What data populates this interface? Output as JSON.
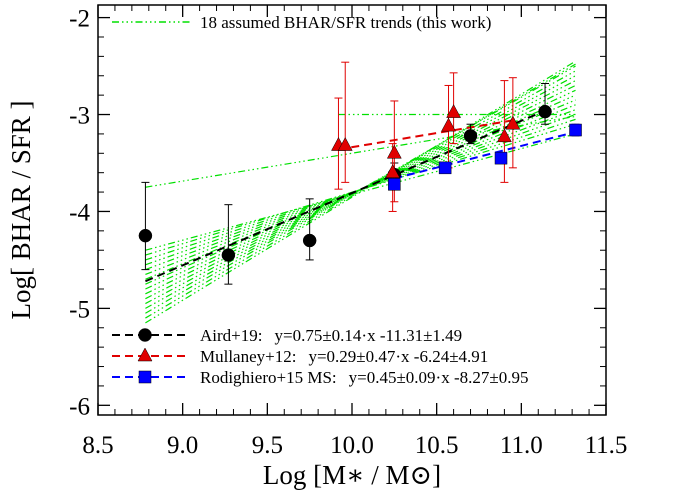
{
  "chart_data": {
    "type": "scatter",
    "xlabel": "Log [M∗ / M⊙]",
    "ylabel": "Log[ BHAR / SFR ]",
    "xlim": [
      8.5,
      11.5
    ],
    "ylim": [
      -6.1,
      -1.87
    ],
    "xticks": [
      {
        "value": 8.5,
        "label": "8.5"
      },
      {
        "value": 9.0,
        "label": "9.0"
      },
      {
        "value": 9.5,
        "label": "9.5"
      },
      {
        "value": 10.0,
        "label": "10.0"
      },
      {
        "value": 10.5,
        "label": "10.5"
      },
      {
        "value": 11.0,
        "label": "11.0"
      },
      {
        "value": 11.5,
        "label": "11.5"
      }
    ],
    "yticks": [
      -6,
      -5,
      -4,
      -3,
      -2
    ],
    "xminor_ticks": [
      8.6,
      8.7,
      8.8,
      8.9,
      9.1,
      9.2,
      9.3,
      9.4,
      9.6,
      9.7,
      9.8,
      9.9,
      10.1,
      10.2,
      10.3,
      10.4,
      10.6,
      10.7,
      10.8,
      10.9,
      11.1,
      11.2,
      11.3,
      11.4
    ],
    "yminor_ticks": [
      -5.8,
      -5.6,
      -5.4,
      -5.2,
      -4.8,
      -4.6,
      -4.4,
      -4.2,
      -3.8,
      -3.6,
      -3.4,
      -3.2,
      -2.8,
      -2.6,
      -2.4,
      -2.2
    ],
    "trends_label": "18 assumed BHAR/SFR trends (this work)",
    "trends_color": "#00e000",
    "trends": [
      {
        "x": [
          9.92,
          11.32
        ],
        "y": [
          -3.0,
          -3.0
        ]
      },
      {
        "x": [
          8.78,
          11.32
        ],
        "y": [
          -3.75,
          -3.02
        ]
      },
      {
        "x": [
          8.78,
          11.32
        ],
        "y": [
          -4.4,
          -3.2
        ]
      },
      {
        "x": [
          8.78,
          11.32
        ],
        "y": [
          -4.45,
          -3.1
        ]
      },
      {
        "x": [
          8.78,
          11.32
        ],
        "y": [
          -4.5,
          -3.05
        ]
      },
      {
        "x": [
          8.78,
          11.32
        ],
        "y": [
          -4.55,
          -3.0
        ]
      },
      {
        "x": [
          8.78,
          11.32
        ],
        "y": [
          -4.6,
          -2.95
        ]
      },
      {
        "x": [
          8.78,
          11.32
        ],
        "y": [
          -4.65,
          -2.9
        ]
      },
      {
        "x": [
          8.78,
          11.32
        ],
        "y": [
          -4.7,
          -2.85
        ]
      },
      {
        "x": [
          8.78,
          11.32
        ],
        "y": [
          -4.75,
          -2.8
        ]
      },
      {
        "x": [
          8.78,
          11.32
        ],
        "y": [
          -4.8,
          -2.75
        ]
      },
      {
        "x": [
          8.78,
          11.32
        ],
        "y": [
          -4.85,
          -2.7
        ]
      },
      {
        "x": [
          8.78,
          11.32
        ],
        "y": [
          -4.9,
          -2.65
        ]
      },
      {
        "x": [
          8.78,
          11.32
        ],
        "y": [
          -4.95,
          -2.6
        ]
      },
      {
        "x": [
          8.78,
          11.32
        ],
        "y": [
          -5.0,
          -2.55
        ]
      },
      {
        "x": [
          8.78,
          11.32
        ],
        "y": [
          -5.05,
          -2.5
        ]
      },
      {
        "x": [
          8.78,
          11.32
        ],
        "y": [
          -5.1,
          -2.48
        ]
      },
      {
        "x": [
          8.78,
          11.32
        ],
        "y": [
          -5.15,
          -2.45
        ]
      }
    ],
    "series": [
      {
        "name": "Aird+19:",
        "fit_label": "y=0.75±0.14·x -11.31±1.49",
        "color": "#000000",
        "marker": "circle",
        "x": [
          8.78,
          9.27,
          9.75,
          10.25,
          10.7,
          11.14
        ],
        "values": [
          -4.25,
          -4.45,
          -4.3,
          -3.62,
          -3.22,
          -2.97
        ],
        "err_high": [
          -3.7,
          -3.93,
          -3.87,
          -3.5,
          -3.1,
          -2.68
        ],
        "err_low": [
          -4.6,
          -4.75,
          -4.5,
          -3.75,
          -3.3,
          -3.1
        ],
        "fit": {
          "x": [
            8.78,
            11.14
          ],
          "y": [
            -4.72,
            -2.96
          ]
        }
      },
      {
        "name": "Mullaney+12:",
        "fit_label": "y=0.29±0.47·x -6.24±4.91",
        "color": "#e00000",
        "marker": "triangle",
        "x": [
          9.92,
          9.96,
          10.24,
          10.25,
          10.57,
          10.6,
          10.9,
          10.95
        ],
        "values": [
          -3.32,
          -3.32,
          -3.6,
          -3.4,
          -3.12,
          -2.98,
          -3.23,
          -3.1
        ],
        "err_high": [
          -2.83,
          -2.46,
          -3.3,
          -2.86,
          -2.7,
          -2.57,
          -2.65,
          -2.62
        ],
        "err_low": [
          -3.77,
          -3.7,
          -4.0,
          -3.9,
          -3.55,
          -3.3,
          -3.7,
          -3.55
        ],
        "fit": {
          "x": [
            9.92,
            10.95
          ],
          "y": [
            -3.36,
            -3.06
          ]
        }
      },
      {
        "name": "Rodighiero+15 MS:",
        "fit_label": "y=0.45±0.09·x -8.27±0.95",
        "color": "#0000ff",
        "marker": "square",
        "x": [
          10.25,
          10.55,
          10.88,
          11.32
        ],
        "values": [
          -3.72,
          -3.55,
          -3.45,
          -3.16
        ],
        "err_high": [
          -3.67,
          -3.5,
          -3.4,
          -3.1
        ],
        "err_low": [
          -3.77,
          -3.6,
          -3.5,
          -3.22
        ],
        "fit": {
          "x": [
            10.25,
            11.32
          ],
          "y": [
            -3.66,
            -3.18
          ]
        }
      }
    ]
  }
}
